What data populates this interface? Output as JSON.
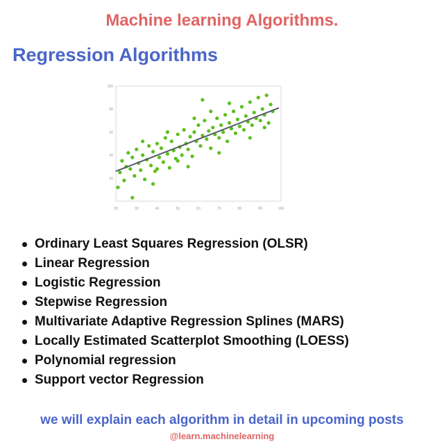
{
  "header": {
    "title": "Machine learning Algorithms."
  },
  "section": {
    "title": "Regression Algorithms"
  },
  "chart_data": {
    "type": "scatter",
    "title": "",
    "xlabel": "",
    "ylabel": "",
    "xlim": [
      20,
      100
    ],
    "ylim": [
      0,
      100
    ],
    "x_ticks": [
      "20",
      "30",
      "40",
      "50",
      "60",
      "70",
      "80",
      "90",
      "100"
    ],
    "y_ticks": [
      "20",
      "40",
      "60",
      "80",
      "100"
    ],
    "grid": false,
    "point_color": "#5cbf1e",
    "line_color": "#555a66",
    "points": [
      [
        21,
        12
      ],
      [
        22,
        25
      ],
      [
        23,
        35
      ],
      [
        24,
        18
      ],
      [
        25,
        30
      ],
      [
        26,
        42
      ],
      [
        27,
        28
      ],
      [
        28,
        38
      ],
      [
        29,
        22
      ],
      [
        30,
        45
      ],
      [
        31,
        33
      ],
      [
        32,
        27
      ],
      [
        33,
        40
      ],
      [
        34,
        19
      ],
      [
        35,
        36
      ],
      [
        36,
        48
      ],
      [
        37,
        31
      ],
      [
        38,
        43
      ],
      [
        39,
        26
      ],
      [
        40,
        50
      ],
      [
        41,
        38
      ],
      [
        42,
        46
      ],
      [
        43,
        34
      ],
      [
        44,
        55
      ],
      [
        45,
        41
      ],
      [
        46,
        29
      ],
      [
        47,
        52
      ],
      [
        48,
        44
      ],
      [
        49,
        37
      ],
      [
        50,
        58
      ],
      [
        51,
        47
      ],
      [
        52,
        40
      ],
      [
        53,
        62
      ],
      [
        54,
        50
      ],
      [
        55,
        45
      ],
      [
        56,
        56
      ],
      [
        57,
        39
      ],
      [
        58,
        60
      ],
      [
        59,
        52
      ],
      [
        60,
        66
      ],
      [
        61,
        48
      ],
      [
        62,
        57
      ],
      [
        63,
        70
      ],
      [
        64,
        54
      ],
      [
        65,
        61
      ],
      [
        66,
        46
      ],
      [
        67,
        64
      ],
      [
        68,
        58
      ],
      [
        69,
        72
      ],
      [
        70,
        55
      ],
      [
        71,
        66
      ],
      [
        72,
        60
      ],
      [
        73,
        75
      ],
      [
        74,
        52
      ],
      [
        75,
        68
      ],
      [
        76,
        63
      ],
      [
        77,
        78
      ],
      [
        78,
        59
      ],
      [
        79,
        71
      ],
      [
        80,
        65
      ],
      [
        81,
        82
      ],
      [
        82,
        62
      ],
      [
        83,
        74
      ],
      [
        84,
        69
      ],
      [
        85,
        86
      ],
      [
        86,
        66
      ],
      [
        87,
        77
      ],
      [
        88,
        72
      ],
      [
        89,
        90
      ],
      [
        90,
        70
      ],
      [
        91,
        80
      ],
      [
        92,
        75
      ],
      [
        93,
        92
      ],
      [
        94,
        68
      ],
      [
        95,
        84
      ],
      [
        96,
        78
      ],
      [
        28,
        3
      ],
      [
        33,
        52
      ],
      [
        55,
        30
      ],
      [
        62,
        88
      ],
      [
        70,
        42
      ],
      [
        85,
        55
      ],
      [
        45,
        60
      ],
      [
        38,
        15
      ],
      [
        75,
        85
      ],
      [
        58,
        72
      ],
      [
        50,
        35
      ],
      [
        66,
        78
      ],
      [
        40,
        28
      ],
      [
        92,
        64
      ]
    ],
    "fit_line": {
      "x": [
        20,
        99
      ],
      "y": [
        26,
        81
      ]
    }
  },
  "algorithms": [
    "Ordinary Least Squares Regression (OLSR)",
    "Linear Regression",
    "Logistic Regression",
    "Stepwise Regression",
    "Multivariate Adaptive Regression Splines (MARS)",
    "Locally Estimated Scatterplot Smoothing (LOESS)",
    "Polynomial regression",
    "Support vector Regression"
  ],
  "footer": {
    "note": "we will explain each algorithm in detail in upcoming posts",
    "handle": "@learn.machinelearning"
  }
}
